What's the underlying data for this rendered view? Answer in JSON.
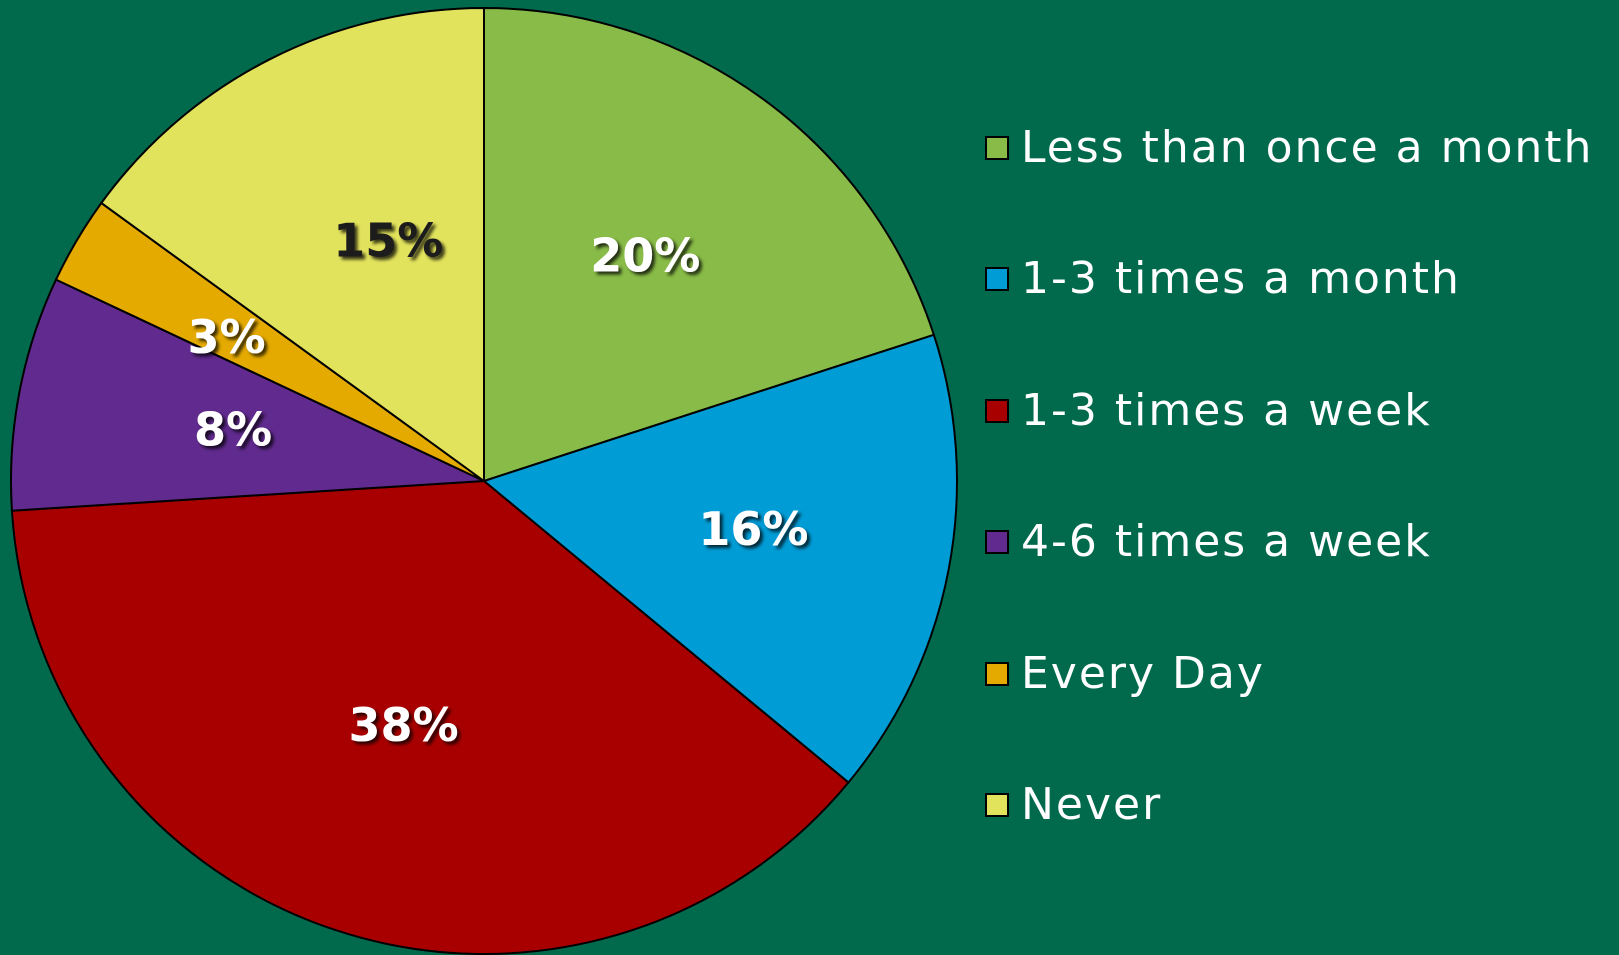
{
  "chart_data": {
    "type": "pie",
    "title": "",
    "categories": [
      "Less than once a month",
      "1-3 times a month",
      "1-3 times a week",
      "4-6 times a week",
      "Every Day",
      "Never"
    ],
    "values": [
      20,
      16,
      38,
      8,
      3,
      15
    ],
    "data_labels": [
      "20%",
      "16%",
      "38%",
      "8%",
      "3%",
      "15%"
    ],
    "colors": [
      "#88BB47",
      "#009CD6",
      "#A80000",
      "#602A8E",
      "#E4AA00",
      "#E2E35C"
    ],
    "label_colors": [
      "#FFFFFF",
      "#FFFFFF",
      "#FFFFFF",
      "#FFFFFF",
      "#FFFFFF",
      "#1A1A1A"
    ],
    "start_angle_deg": 0,
    "direction": "clockwise",
    "legend_position": "right"
  }
}
